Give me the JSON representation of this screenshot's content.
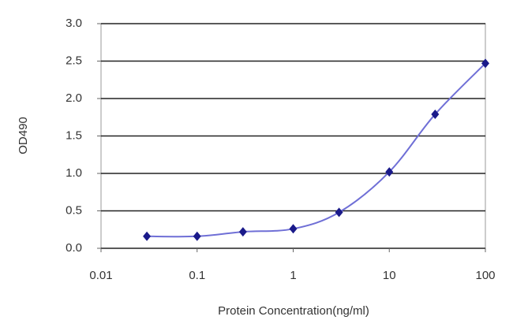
{
  "chart_data": {
    "type": "line",
    "x_label": "Protein Concentration(ng/ml)",
    "y_label": "OD490",
    "x": [
      0.03,
      0.1,
      0.3,
      1,
      3,
      10,
      30,
      100
    ],
    "series": [
      {
        "name": "OD490",
        "color": "#6f6fd6",
        "marker_color": "#1a1a8a",
        "values": [
          0.16,
          0.16,
          0.22,
          0.26,
          0.48,
          1.02,
          1.79,
          2.47
        ]
      }
    ],
    "xlim": [
      0.01,
      100
    ],
    "xticks": [
      0.01,
      0.1,
      1,
      10,
      100
    ],
    "x_log": true,
    "ylim": [
      0,
      3
    ],
    "yticks": [
      {
        "value": 0,
        "label": "0.0"
      },
      0.5,
      {
        "value": 1,
        "label": "1.0"
      },
      1.5,
      {
        "value": 2,
        "label": "2.0"
      },
      2.5,
      {
        "value": 3,
        "label": "3.0"
      }
    ],
    "grid": true
  }
}
